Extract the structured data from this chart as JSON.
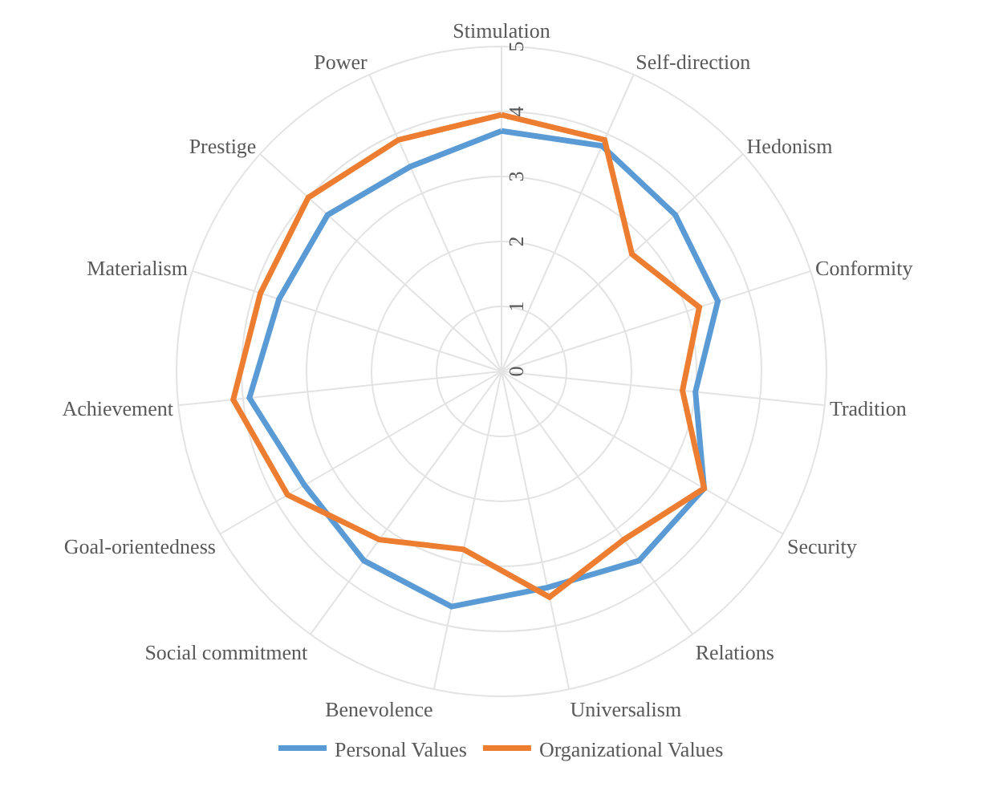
{
  "chart_data": {
    "type": "radar",
    "categories": [
      "Stimulation",
      "Self-direction",
      "Hedonism",
      "Conformity",
      "Tradition",
      "Security",
      "Relations",
      "Universalism",
      "Benevolence",
      "Social commitment",
      "Goal-orientedness",
      "Achievement",
      "Materialism",
      "Prestige",
      "Power"
    ],
    "series": [
      {
        "name": "Personal Values",
        "color": "#5b9bd5",
        "values": [
          3.7,
          3.8,
          3.6,
          3.5,
          3.0,
          3.6,
          3.6,
          3.4,
          3.7,
          3.6,
          3.5,
          3.9,
          3.6,
          3.6,
          3.45
        ]
      },
      {
        "name": "Organizational Values",
        "color": "#ed7d31",
        "values": [
          3.95,
          3.9,
          2.7,
          3.2,
          2.8,
          3.6,
          3.2,
          3.55,
          2.8,
          3.2,
          3.8,
          4.15,
          3.9,
          4.0,
          3.9
        ]
      }
    ],
    "ylim": [
      0,
      5
    ],
    "yticks": [
      0,
      1,
      2,
      3,
      4,
      5
    ],
    "grid": true,
    "legend": "bottom",
    "marker": "none",
    "line_style": "solid"
  }
}
